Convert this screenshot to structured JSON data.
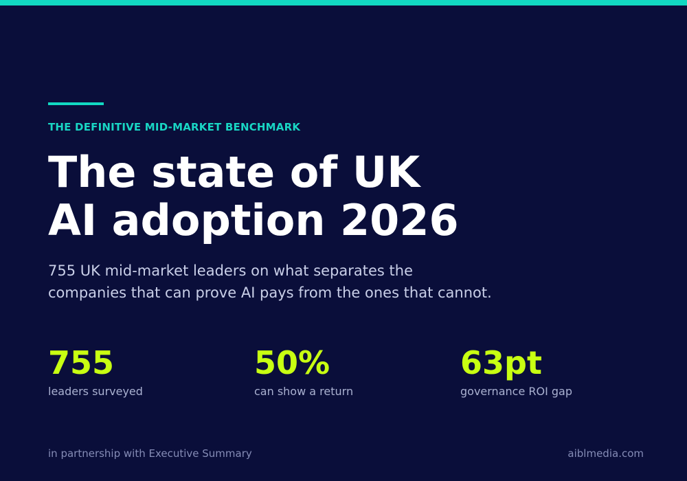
{
  "colors": {
    "background": "#0a0e3a",
    "accent_teal": "#12d9c2",
    "accent_lime": "#c8ff12",
    "headline": "#ffffff",
    "body_text": "#c9cfe8",
    "muted_text": "#858cb6"
  },
  "hero": {
    "eyebrow": "THE DEFINITIVE MID-MARKET BENCHMARK",
    "title_lines": [
      "The state of UK",
      "AI adoption 2026"
    ],
    "subtitle_lines": [
      "755 UK mid-market leaders on what separates the",
      "companies that can prove AI pays from the ones that cannot."
    ]
  },
  "stats": [
    {
      "value": "755",
      "label": "leaders surveyed"
    },
    {
      "value": "50%",
      "label": "can show a return"
    },
    {
      "value": "63pt",
      "label": "governance ROI gap"
    }
  ],
  "footer": {
    "partnership": "in partnership with Executive Summary",
    "website": "aiblmedia.com"
  }
}
